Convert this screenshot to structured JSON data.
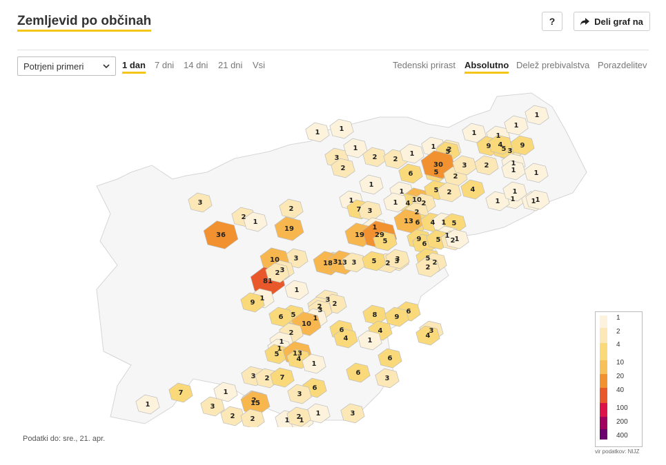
{
  "header": {
    "title": "Zemljevid po občinah",
    "help_label": "?",
    "share_label": "Deli graf na"
  },
  "controls": {
    "select_value": "Potrjeni primeri",
    "period_tabs": [
      "1 dan",
      "7 dni",
      "14 dni",
      "21 dni",
      "Vsi"
    ],
    "active_period": "1 dan",
    "mode_tabs": [
      "Tedenski prirast",
      "Absolutno",
      "Delež prebivalstva",
      "Porazdelitev"
    ],
    "active_mode": "Absolutno"
  },
  "map": {
    "colors": {
      "none": "#ffffff",
      "c1": "#fdf3dd",
      "c2": "#fce8b7",
      "c4": "#f9d97a",
      "c10": "#f7b64e",
      "c20": "#f1912f",
      "c40": "#e9582a",
      "c100": "#dc1348",
      "c200": "#a1005f",
      "c400": "#6b006f",
      "border": "#bcbcbc"
    },
    "region_values": [
      1,
      1,
      3,
      1,
      2,
      2,
      1,
      1,
      2,
      5,
      1,
      1,
      1,
      3,
      6,
      5,
      30,
      2,
      3,
      1,
      9,
      5,
      9,
      2,
      4,
      1,
      1,
      1,
      1,
      1,
      1,
      1,
      1,
      4,
      10,
      5,
      2,
      1,
      1,
      4,
      2,
      1,
      2,
      6,
      2,
      3,
      1,
      7,
      3,
      1,
      13,
      4,
      1,
      5,
      1,
      36,
      2,
      3,
      19,
      1,
      2,
      19,
      29,
      5,
      9,
      6,
      5,
      2,
      1,
      5,
      3,
      2,
      10,
      3,
      18,
      13,
      3,
      5,
      3,
      2,
      2,
      81,
      3,
      2,
      1,
      1,
      9,
      3,
      2,
      2,
      3,
      6,
      8,
      9,
      1,
      5,
      6,
      10,
      6,
      4,
      3,
      4,
      4,
      1,
      2,
      1,
      1,
      5,
      13,
      4,
      1,
      6,
      6,
      3,
      3,
      2,
      7,
      6,
      3,
      1,
      7,
      2,
      15,
      3,
      2,
      2,
      1,
      1,
      1,
      2,
      3,
      1
    ],
    "source_note": "vir podatkov: NIJZ"
  },
  "legend": {
    "labels": [
      "1",
      "2",
      "4",
      "10",
      "20",
      "40",
      "100",
      "200",
      "400"
    ]
  },
  "footer": {
    "date_text": "Podatki do: sre., 21. apr."
  }
}
